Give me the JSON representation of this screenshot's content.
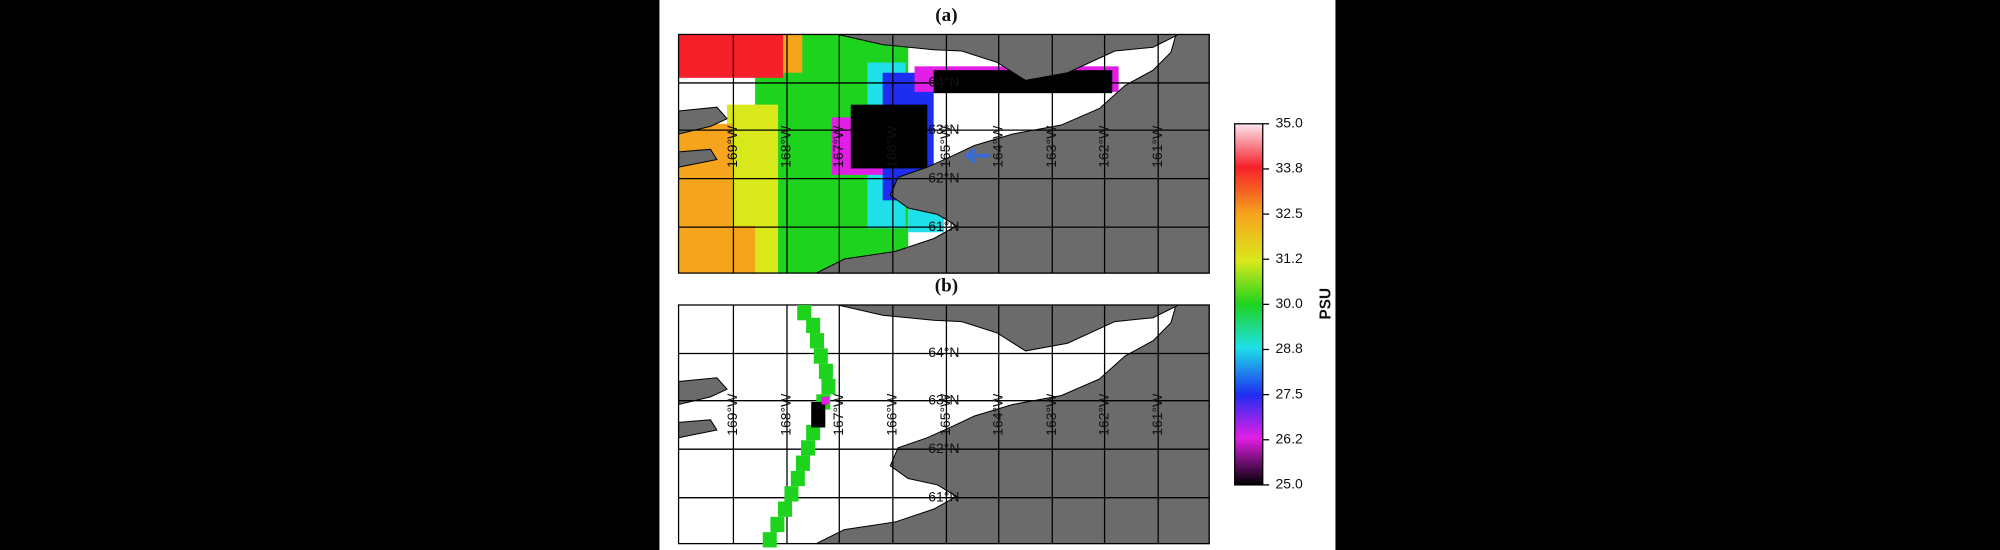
{
  "panels": [
    {
      "label": "(a)"
    },
    {
      "label": "(b)"
    }
  ],
  "map": {
    "latitude_labels": [
      "64°N",
      "63°N",
      "62°N",
      "61°N"
    ],
    "longitude_labels": [
      "169°W",
      "168°W",
      "167°W",
      "166°W",
      "165°W",
      "164°W",
      "163°W",
      "162°W",
      "161°W"
    ]
  },
  "colorbar": {
    "title": "PSU",
    "lim": [
      25,
      35
    ],
    "ticks": [
      {
        "value": 35,
        "label": "35.0"
      },
      {
        "value": 33.75,
        "label": "33.8"
      },
      32.5,
      {
        "value": 31.25,
        "label": "31.2"
      },
      {
        "value": 30,
        "label": "30.0"
      },
      {
        "value": 28.75,
        "label": "28.8"
      },
      27.5,
      {
        "value": 26.25,
        "label": "26.2"
      },
      {
        "value": 25,
        "label": "25.0"
      }
    ]
  }
}
